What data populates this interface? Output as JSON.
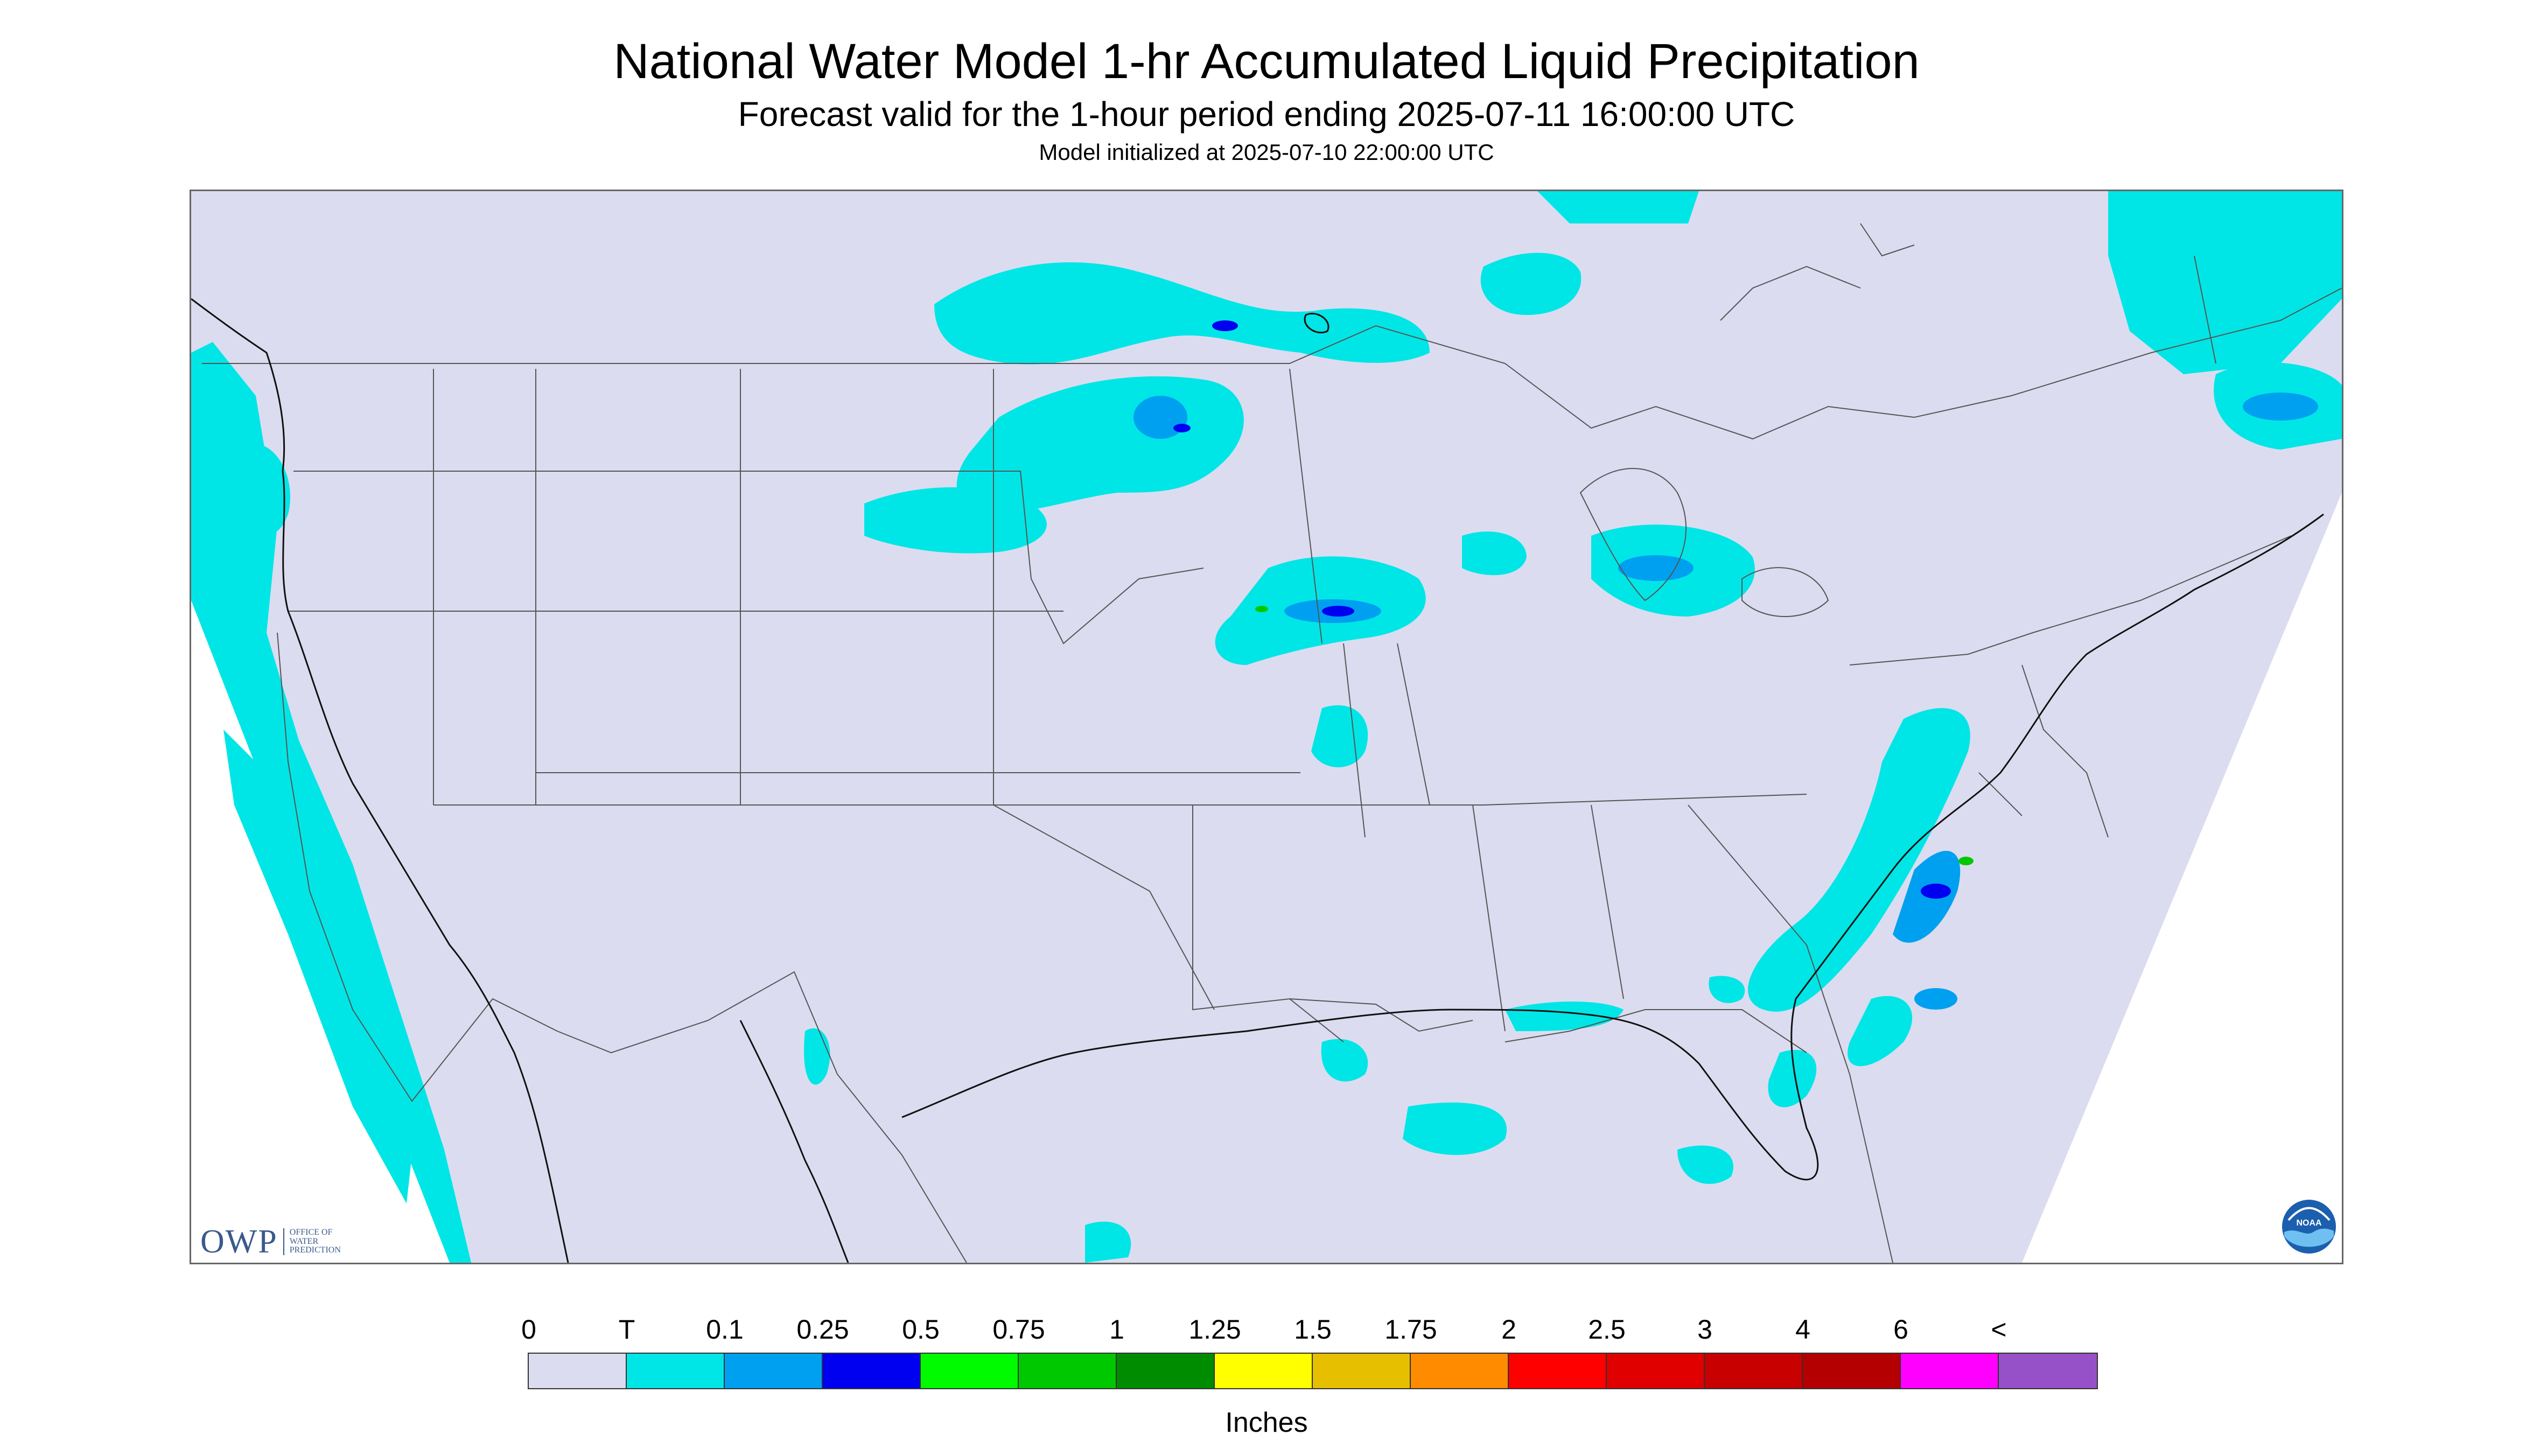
{
  "title": "National Water Model 1-hr Accumulated Liquid Precipitation",
  "subtitle": "Forecast valid for the 1-hour period ending 2025-07-11 16:00:00 UTC",
  "init": "Model initialized at 2025-07-10 22:00:00 UTC",
  "owp_logo": {
    "main": "OWP",
    "sub": "OFFICE OF WATER PREDICTION"
  },
  "noaa_logo": "NOAA",
  "legend": {
    "labels": [
      "0",
      "T",
      "0.1",
      "0.25",
      "0.5",
      "0.75",
      "1",
      "1.25",
      "1.5",
      "1.75",
      "2",
      "2.5",
      "3",
      "4",
      "6",
      "<"
    ],
    "colors": [
      "#dcdcf0",
      "#00e6e6",
      "#00a0f0",
      "#0000f0",
      "#00fa00",
      "#00c800",
      "#008c00",
      "#ffff00",
      "#e6c000",
      "#ff8c00",
      "#ff0000",
      "#e10000",
      "#c80000",
      "#b40000",
      "#ff00ff",
      "#9650c8"
    ],
    "units": "Inches"
  },
  "map_colors": {
    "background": "#dcdcf0",
    "trace": "#00e6e6",
    "light": "#00a0f0",
    "moderate": "#0000f0",
    "heavy": "#00c800",
    "boundary": "#555555"
  }
}
